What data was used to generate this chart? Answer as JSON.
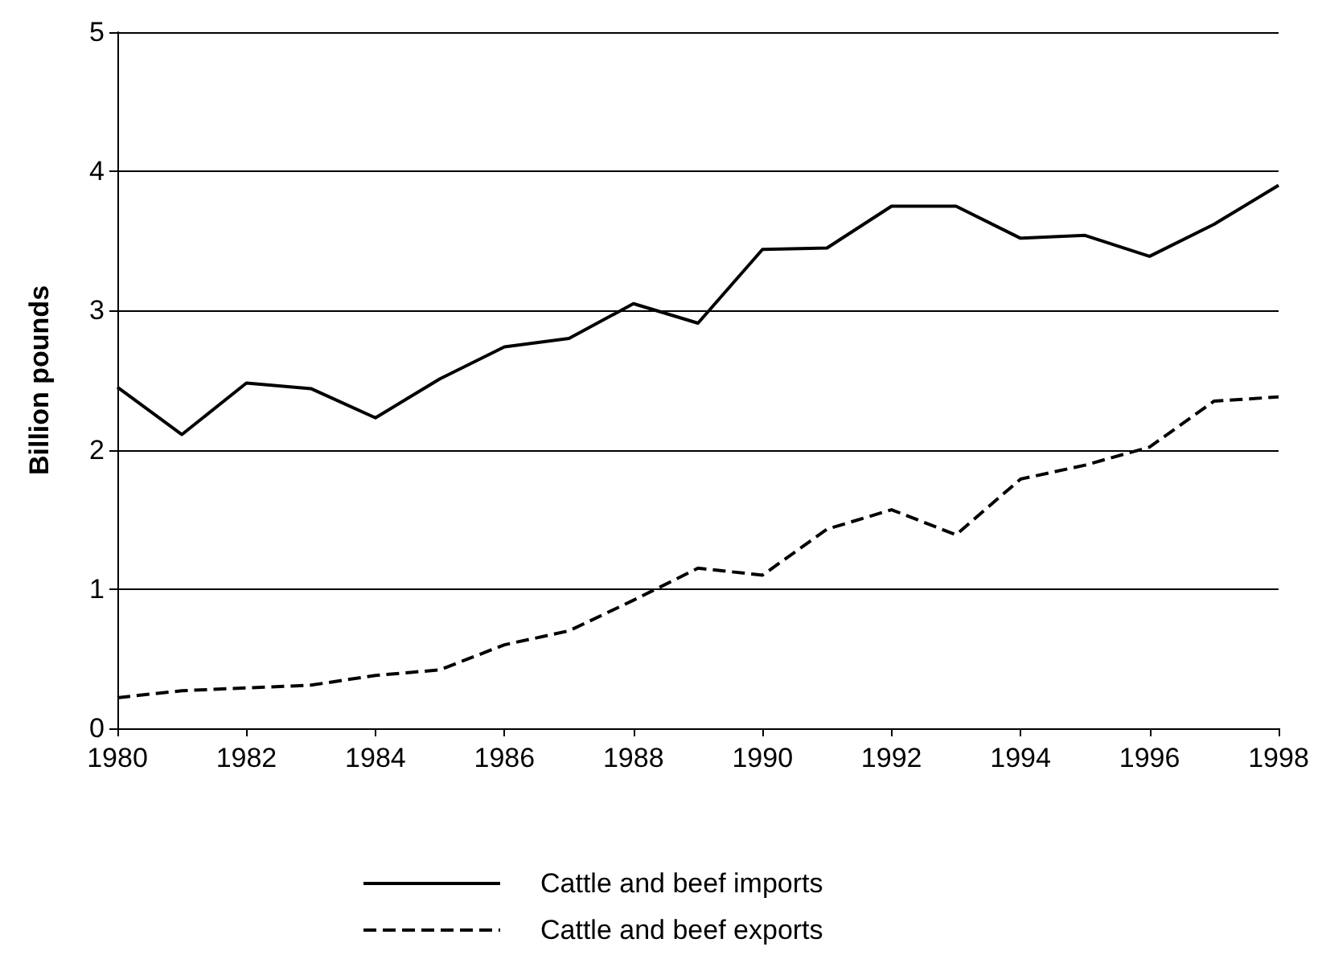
{
  "chart_data": {
    "type": "line",
    "ylabel": "Billion pounds",
    "x": [
      1980,
      1981,
      1982,
      1983,
      1984,
      1985,
      1986,
      1987,
      1988,
      1989,
      1990,
      1991,
      1992,
      1993,
      1994,
      1995,
      1996,
      1997,
      1998
    ],
    "series": [
      {
        "name": "Cattle and beef imports",
        "color": "#000000",
        "line_style": "solid",
        "values": [
          2.45,
          2.11,
          2.48,
          2.44,
          2.23,
          2.51,
          2.74,
          2.8,
          3.05,
          2.91,
          3.44,
          3.45,
          3.75,
          3.75,
          3.52,
          3.54,
          3.39,
          3.62,
          3.9
        ]
      },
      {
        "name": "Cattle and beef exports",
        "color": "#000000",
        "line_style": "dashed",
        "values": [
          0.22,
          0.27,
          0.29,
          0.31,
          0.38,
          0.42,
          0.6,
          0.7,
          0.92,
          1.15,
          1.1,
          1.43,
          1.57,
          1.39,
          1.79,
          1.89,
          2.02,
          2.35,
          2.38
        ]
      }
    ],
    "xlim": [
      1980,
      1998
    ],
    "xticks": [
      1980,
      1982,
      1984,
      1986,
      1988,
      1990,
      1992,
      1994,
      1996,
      1998
    ],
    "ylim": [
      0,
      5
    ],
    "yticks": [
      0,
      1,
      2,
      3,
      4,
      5
    ],
    "grid": "y",
    "legend": "bottom",
    "marker": "none"
  }
}
